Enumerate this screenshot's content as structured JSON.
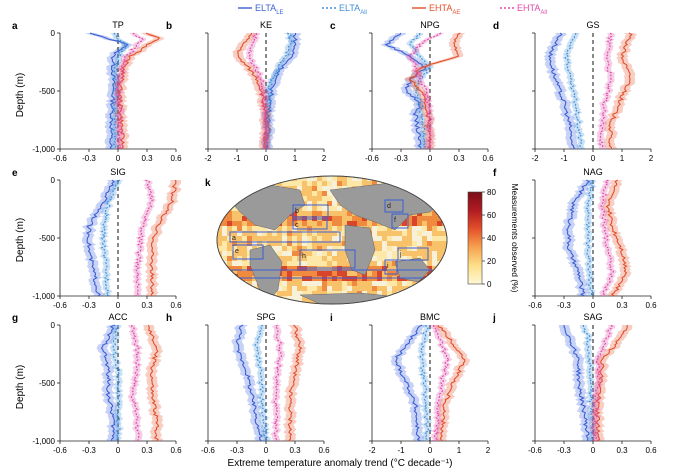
{
  "legend": {
    "items": [
      {
        "label": "ELTA",
        "sub": "LE",
        "color": "#3b5fd6",
        "dash": "solid"
      },
      {
        "label": "ELTA",
        "sub": "All",
        "color": "#3f8fd8",
        "dash": "dotted"
      },
      {
        "label": "EHTA",
        "sub": "AE",
        "color": "#e4502a",
        "dash": "solid"
      },
      {
        "label": "EHTA",
        "sub": "All",
        "color": "#e04aa8",
        "dash": "dotted"
      }
    ]
  },
  "xlabel": "Extreme temperature anomaly trend (°C decade⁻¹)",
  "ylabel": "Depth (m)",
  "colorbar": {
    "label": "Measurements observed (%)",
    "ticks": [
      "0",
      "20",
      "40",
      "60",
      "80"
    ]
  },
  "map_panel": {
    "letter": "k",
    "region_labels": [
      "a",
      "b",
      "c",
      "d",
      "e",
      "f",
      "g",
      "h",
      "i",
      "j"
    ]
  },
  "colors": {
    "elta_le": "#3b5fd6",
    "elta_all": "#3f8fd8",
    "ehta_ae": "#e4502a",
    "ehta_all": "#e04aa8",
    "zero_line": "#111111"
  },
  "chart_data": [
    {
      "letter": "a",
      "title": "TP",
      "type": "line",
      "xlim": [
        -0.6,
        0.6
      ],
      "xticks": [
        "-0.6",
        "-0.3",
        "0",
        "0.3",
        "0.6"
      ],
      "ylim": [
        -1000,
        0
      ],
      "yticks": [
        "0",
        "-500",
        "-1,000"
      ],
      "depth": [
        0,
        -50,
        -100,
        -150,
        -200,
        -300,
        -500,
        -1000
      ],
      "series": [
        {
          "name": "ELTA_LE",
          "values": [
            -0.3,
            -0.1,
            0.12,
            0.0,
            -0.05,
            -0.05,
            -0.05,
            -0.08
          ]
        },
        {
          "name": "ELTA_All",
          "values": [
            -0.05,
            0.0,
            0.08,
            0.05,
            0.0,
            -0.02,
            -0.02,
            -0.03
          ]
        },
        {
          "name": "EHTA_AE",
          "values": [
            0.3,
            0.45,
            0.3,
            0.25,
            0.12,
            0.06,
            0.02,
            0.05
          ]
        },
        {
          "name": "EHTA_All",
          "values": [
            0.15,
            0.25,
            0.2,
            0.15,
            0.08,
            0.04,
            0.01,
            0.02
          ]
        }
      ]
    },
    {
      "letter": "b",
      "title": "KE",
      "type": "line",
      "xlim": [
        -2,
        2
      ],
      "xticks": [
        "-2",
        "-1",
        "0",
        "1",
        "2"
      ],
      "ylim": [
        -1000,
        0
      ],
      "yticks": [
        "0",
        "-500",
        "-1,000"
      ],
      "depth": [
        0,
        -100,
        -200,
        -300,
        -400,
        -500,
        -700,
        -1000
      ],
      "series": [
        {
          "name": "ELTA_LE",
          "values": [
            1.0,
            1.0,
            0.9,
            0.55,
            0.3,
            0.2,
            0.1,
            0.05
          ]
        },
        {
          "name": "ELTA_All",
          "values": [
            0.8,
            0.85,
            0.7,
            0.4,
            0.2,
            0.1,
            0.05,
            0.02
          ]
        },
        {
          "name": "EHTA_AE",
          "values": [
            -0.5,
            -0.8,
            -1.0,
            -0.6,
            -0.3,
            -0.15,
            -0.05,
            -0.02
          ]
        },
        {
          "name": "EHTA_All",
          "values": [
            -0.3,
            -0.5,
            -0.6,
            -0.35,
            -0.15,
            -0.08,
            -0.03,
            -0.01
          ]
        }
      ]
    },
    {
      "letter": "c",
      "title": "NPG",
      "type": "line",
      "xlim": [
        -0.6,
        0.6
      ],
      "xticks": [
        "-0.6",
        "-0.3",
        "0",
        "0.3",
        "0.6"
      ],
      "ylim": [
        -1000,
        0
      ],
      "yticks": [
        "0",
        "-500",
        "-1,000"
      ],
      "depth": [
        0,
        -100,
        -200,
        -300,
        -400,
        -500,
        -600,
        -700,
        -1000
      ],
      "series": [
        {
          "name": "ELTA_LE",
          "values": [
            -0.3,
            -0.45,
            -0.2,
            -0.05,
            -0.2,
            -0.25,
            -0.1,
            -0.15,
            -0.1
          ]
        },
        {
          "name": "ELTA_All",
          "values": [
            -0.1,
            -0.2,
            -0.1,
            0.0,
            -0.1,
            -0.15,
            -0.1,
            -0.08,
            -0.05
          ]
        },
        {
          "name": "EHTA_AE",
          "values": [
            0.3,
            0.25,
            0.3,
            -0.1,
            -0.2,
            -0.1,
            -0.05,
            -0.02,
            0.0
          ]
        },
        {
          "name": "EHTA_All",
          "values": [
            0.1,
            -0.1,
            -0.2,
            -0.15,
            -0.1,
            -0.05,
            -0.02,
            0.0,
            0.0
          ]
        }
      ]
    },
    {
      "letter": "d",
      "title": "GS",
      "type": "line",
      "xlim": [
        -2,
        2
      ],
      "xticks": [
        "-2",
        "-1",
        "0",
        "1",
        "2"
      ],
      "ylim": [
        -1000,
        0
      ],
      "yticks": [
        "0",
        "-500",
        "-1,000"
      ],
      "depth": [
        0,
        -200,
        -400,
        -600,
        -800,
        -1000
      ],
      "series": [
        {
          "name": "ELTA_LE",
          "values": [
            -1.1,
            -1.5,
            -1.3,
            -1.0,
            -0.8,
            -0.7
          ]
        },
        {
          "name": "ELTA_All",
          "values": [
            -0.6,
            -0.9,
            -0.8,
            -0.6,
            -0.5,
            -0.4
          ]
        },
        {
          "name": "EHTA_AE",
          "values": [
            1.3,
            1.0,
            1.3,
            0.9,
            0.6,
            0.6
          ]
        },
        {
          "name": "EHTA_All",
          "values": [
            0.6,
            0.5,
            0.6,
            0.4,
            0.3,
            0.3
          ]
        }
      ]
    },
    {
      "letter": "e",
      "title": "SIG",
      "type": "line",
      "xlim": [
        -0.6,
        0.6
      ],
      "xticks": [
        "-0.6",
        "-0.3",
        "0",
        "0.3",
        "0.6"
      ],
      "ylim": [
        -1000,
        0
      ],
      "yticks": [
        "0",
        "-500",
        "-1,000"
      ],
      "depth": [
        0,
        -200,
        -400,
        -600,
        -800,
        -1000
      ],
      "series": [
        {
          "name": "ELTA_LE",
          "values": [
            -0.05,
            -0.15,
            -0.3,
            -0.3,
            -0.25,
            -0.2
          ]
        },
        {
          "name": "ELTA_All",
          "values": [
            0.0,
            -0.1,
            -0.15,
            -0.15,
            -0.12,
            -0.1
          ]
        },
        {
          "name": "EHTA_AE",
          "values": [
            0.6,
            0.55,
            0.4,
            0.35,
            0.35,
            0.35
          ]
        },
        {
          "name": "EHTA_All",
          "values": [
            0.3,
            0.35,
            0.25,
            0.22,
            0.2,
            0.2
          ]
        }
      ]
    },
    {
      "letter": "f",
      "title": "NAG",
      "type": "line",
      "xlim": [
        -0.6,
        0.6
      ],
      "xticks": [
        "-0.6",
        "-0.3",
        "0",
        "0.3",
        "0.6"
      ],
      "ylim": [
        -1000,
        0
      ],
      "yticks": [
        "0",
        "-500",
        "-1,000"
      ],
      "depth": [
        0,
        -200,
        -400,
        -600,
        -800,
        -1000
      ],
      "series": [
        {
          "name": "ELTA_LE",
          "values": [
            -0.05,
            -0.2,
            -0.25,
            -0.25,
            -0.15,
            -0.1
          ]
        },
        {
          "name": "ELTA_All",
          "values": [
            0.0,
            -0.05,
            -0.05,
            -0.05,
            -0.03,
            -0.02
          ]
        },
        {
          "name": "EHTA_AE",
          "values": [
            0.25,
            0.15,
            0.2,
            0.3,
            0.35,
            0.2
          ]
        },
        {
          "name": "EHTA_All",
          "values": [
            0.15,
            0.1,
            0.12,
            0.15,
            0.2,
            0.1
          ]
        }
      ]
    },
    {
      "letter": "g",
      "title": "ACC",
      "type": "line",
      "xlim": [
        -0.6,
        0.6
      ],
      "xticks": [
        "-0.6",
        "-0.3",
        "0",
        "0.3",
        "0.6"
      ],
      "ylim": [
        -1000,
        0
      ],
      "yticks": [
        "0",
        "-500",
        "-1,000"
      ],
      "depth": [
        0,
        -200,
        -400,
        -600,
        -800,
        -1000
      ],
      "series": [
        {
          "name": "ELTA_LE",
          "values": [
            -0.05,
            -0.15,
            -0.1,
            -0.1,
            -0.05,
            -0.05
          ]
        },
        {
          "name": "ELTA_All",
          "values": [
            0.0,
            -0.05,
            0.0,
            0.0,
            0.0,
            0.0
          ]
        },
        {
          "name": "EHTA_AE",
          "values": [
            0.3,
            0.4,
            0.35,
            0.35,
            0.4,
            0.4
          ]
        },
        {
          "name": "EHTA_All",
          "values": [
            0.15,
            0.2,
            0.2,
            0.15,
            0.2,
            0.2
          ]
        }
      ]
    },
    {
      "letter": "h",
      "title": "SPG",
      "type": "line",
      "xlim": [
        -0.6,
        0.6
      ],
      "xticks": [
        "-0.6",
        "-0.3",
        "0",
        "0.3",
        "0.6"
      ],
      "ylim": [
        -1000,
        0
      ],
      "yticks": [
        "0",
        "-500",
        "-1,000"
      ],
      "depth": [
        0,
        -200,
        -400,
        -600,
        -800,
        -1000
      ],
      "series": [
        {
          "name": "ELTA_LE",
          "values": [
            -0.25,
            -0.3,
            -0.2,
            -0.15,
            -0.1,
            -0.05
          ]
        },
        {
          "name": "ELTA_All",
          "values": [
            -0.05,
            -0.1,
            -0.05,
            -0.05,
            -0.02,
            0.0
          ]
        },
        {
          "name": "EHTA_AE",
          "values": [
            0.3,
            0.35,
            0.3,
            0.25,
            0.25,
            0.25
          ]
        },
        {
          "name": "EHTA_All",
          "values": [
            0.1,
            0.15,
            0.12,
            0.1,
            0.1,
            0.1
          ]
        }
      ]
    },
    {
      "letter": "i",
      "title": "BMC",
      "type": "line",
      "xlim": [
        -2,
        2
      ],
      "xticks": [
        "-2",
        "-1",
        "0",
        "1",
        "2"
      ],
      "ylim": [
        -1000,
        0
      ],
      "yticks": [
        "0",
        "-500",
        "-1,000"
      ],
      "depth": [
        0,
        -100,
        -300,
        -500,
        -700,
        -1000
      ],
      "series": [
        {
          "name": "ELTA_LE",
          "values": [
            -0.3,
            -0.6,
            -1.2,
            -0.8,
            -0.5,
            -0.4
          ]
        },
        {
          "name": "ELTA_All",
          "values": [
            -0.1,
            -0.2,
            -0.3,
            -0.2,
            -0.15,
            -0.1
          ]
        },
        {
          "name": "EHTA_AE",
          "values": [
            0.3,
            0.6,
            1.2,
            0.8,
            0.5,
            0.4
          ]
        },
        {
          "name": "EHTA_All",
          "values": [
            0.1,
            0.3,
            0.6,
            0.4,
            0.3,
            0.2
          ]
        }
      ]
    },
    {
      "letter": "j",
      "title": "SAG",
      "type": "line",
      "xlim": [
        -0.6,
        0.6
      ],
      "xticks": [
        "-0.6",
        "-0.3",
        "0",
        "0.3",
        "0.6"
      ],
      "ylim": [
        -1000,
        0
      ],
      "yticks": [
        "0",
        "-500",
        "-1,000"
      ],
      "depth": [
        0,
        -100,
        -200,
        -300,
        -500,
        -700,
        -1000
      ],
      "series": [
        {
          "name": "ELTA_LE",
          "values": [
            -0.3,
            -0.25,
            -0.2,
            -0.15,
            -0.15,
            -0.1,
            -0.05
          ]
        },
        {
          "name": "ELTA_All",
          "values": [
            -0.1,
            -0.05,
            -0.05,
            -0.03,
            -0.03,
            -0.02,
            0.0
          ]
        },
        {
          "name": "EHTA_AE",
          "values": [
            0.35,
            0.3,
            0.2,
            0.1,
            0.08,
            0.05,
            0.05
          ]
        },
        {
          "name": "EHTA_All",
          "values": [
            0.2,
            0.15,
            0.1,
            0.05,
            0.05,
            0.03,
            0.02
          ]
        }
      ]
    }
  ]
}
